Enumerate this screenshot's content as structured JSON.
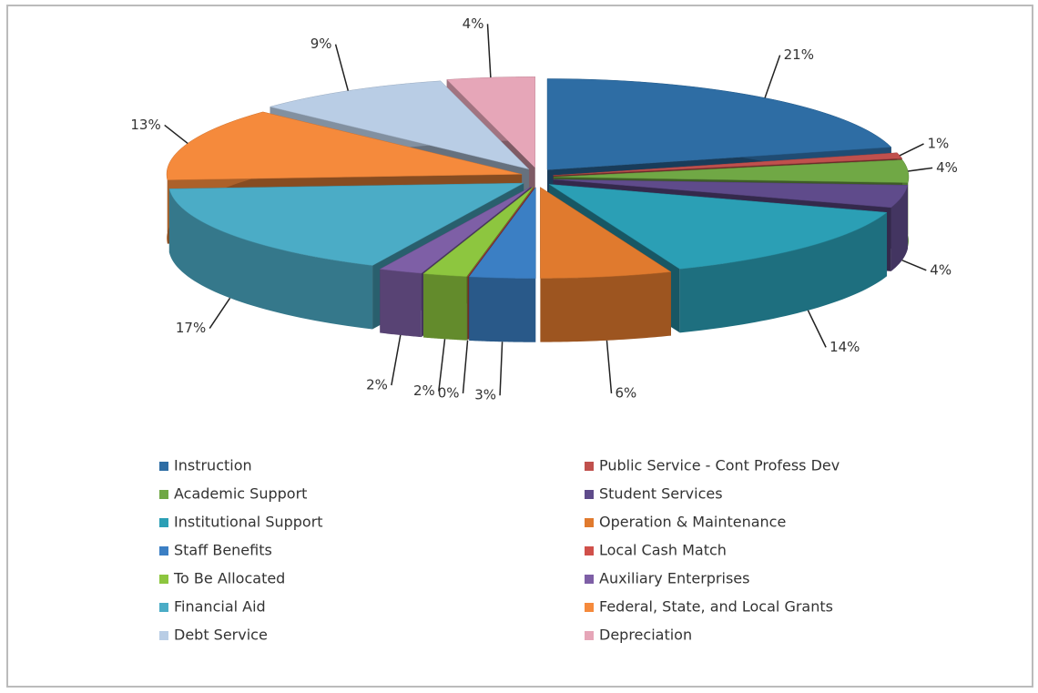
{
  "chart_data": {
    "type": "pie",
    "categories": [
      "Instruction",
      "Public Service - Cont Profess Dev",
      "Academic Support",
      "Student Services",
      "Institutional Support",
      "Operation & Maintenance",
      "Staff Benefits",
      "Local Cash Match",
      "To Be Allocated",
      "Auxiliary Enterprises",
      "Financial Aid",
      "Federal, State, and Local Grants",
      "Debt Service",
      "Depreciation"
    ],
    "values": [
      21,
      1,
      4,
      4,
      14,
      6,
      3,
      0,
      2,
      2,
      17,
      13,
      9,
      4
    ],
    "value_labels": [
      "21%",
      "1%",
      "4%",
      "4%",
      "14%",
      "6%",
      "3%",
      "0%",
      "2%",
      "2%",
      "17%",
      "13%",
      "9%",
      "4%"
    ],
    "colors": [
      "#2e6da4",
      "#c0504d",
      "#70a845",
      "#5f4b8b",
      "#2b9fb5",
      "#e07a2e",
      "#3b7fc4",
      "#d0504a",
      "#8dc63f",
      "#7e5fa6",
      "#4bacc6",
      "#f58a3c",
      "#b9cde5",
      "#e6a6b8"
    ],
    "legend": "bottom"
  }
}
